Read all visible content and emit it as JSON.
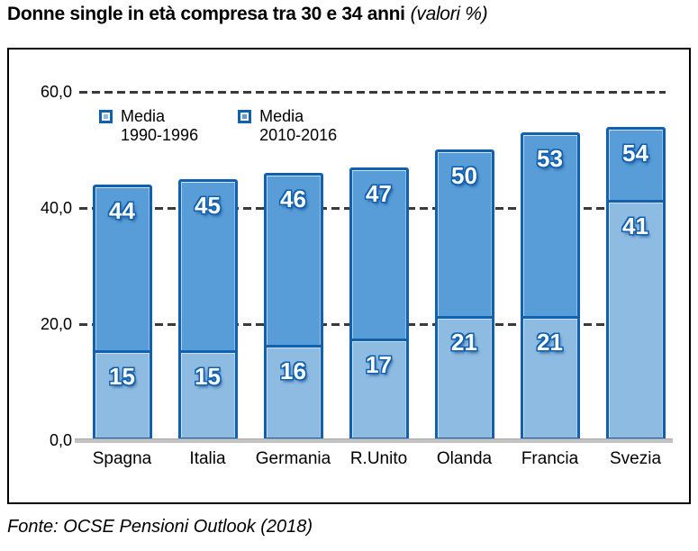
{
  "title": {
    "main": "Donne single in età compresa tra 30 e 34 anni",
    "suffix": "(valori %)"
  },
  "legend": {
    "items": [
      {
        "line1": "Media",
        "line2": "1990-1996",
        "color": "#8ebbe1"
      },
      {
        "line1": "Media",
        "line2": "2010-2016",
        "color": "#589dd7"
      }
    ]
  },
  "footer": {
    "source": "Fonte: OCSE Pensioni Outlook (2018)"
  },
  "colors": {
    "series_light": "#8ebbe1",
    "series_medium": "#589dd7",
    "bar_border": "#1161b0",
    "grid": "#3a3a3a",
    "axis": "#c3c3c3",
    "frame": "#000000"
  },
  "chart_data": {
    "type": "bar",
    "subtype": "overlaid-columns",
    "title": "Donne single in età compresa tra 30 e 34 anni (valori %)",
    "categories": [
      "Spagna",
      "Italia",
      "Germania",
      "R.Unito",
      "Olanda",
      "Francia",
      "Svezia"
    ],
    "series": [
      {
        "name": "Media 1990-1996",
        "values": [
          15,
          15,
          16,
          17,
          21,
          21,
          41
        ],
        "color": "#8ebbe1"
      },
      {
        "name": "Media 2010-2016",
        "values": [
          44,
          45,
          46,
          47,
          50,
          53,
          54
        ],
        "color": "#589dd7"
      }
    ],
    "xlabel": "",
    "ylabel": "",
    "ylim": [
      0,
      60
    ],
    "yticks": [
      {
        "label": "60,0",
        "value": 60
      },
      {
        "label": "40,0",
        "value": 40
      },
      {
        "label": "20,0",
        "value": 20
      },
      {
        "label": "0,0",
        "value": 0
      }
    ],
    "grid": "horizontal-dashed",
    "legend_position": "top-left-inside",
    "source": "Fonte: OCSE Pensioni Outlook (2018)"
  }
}
